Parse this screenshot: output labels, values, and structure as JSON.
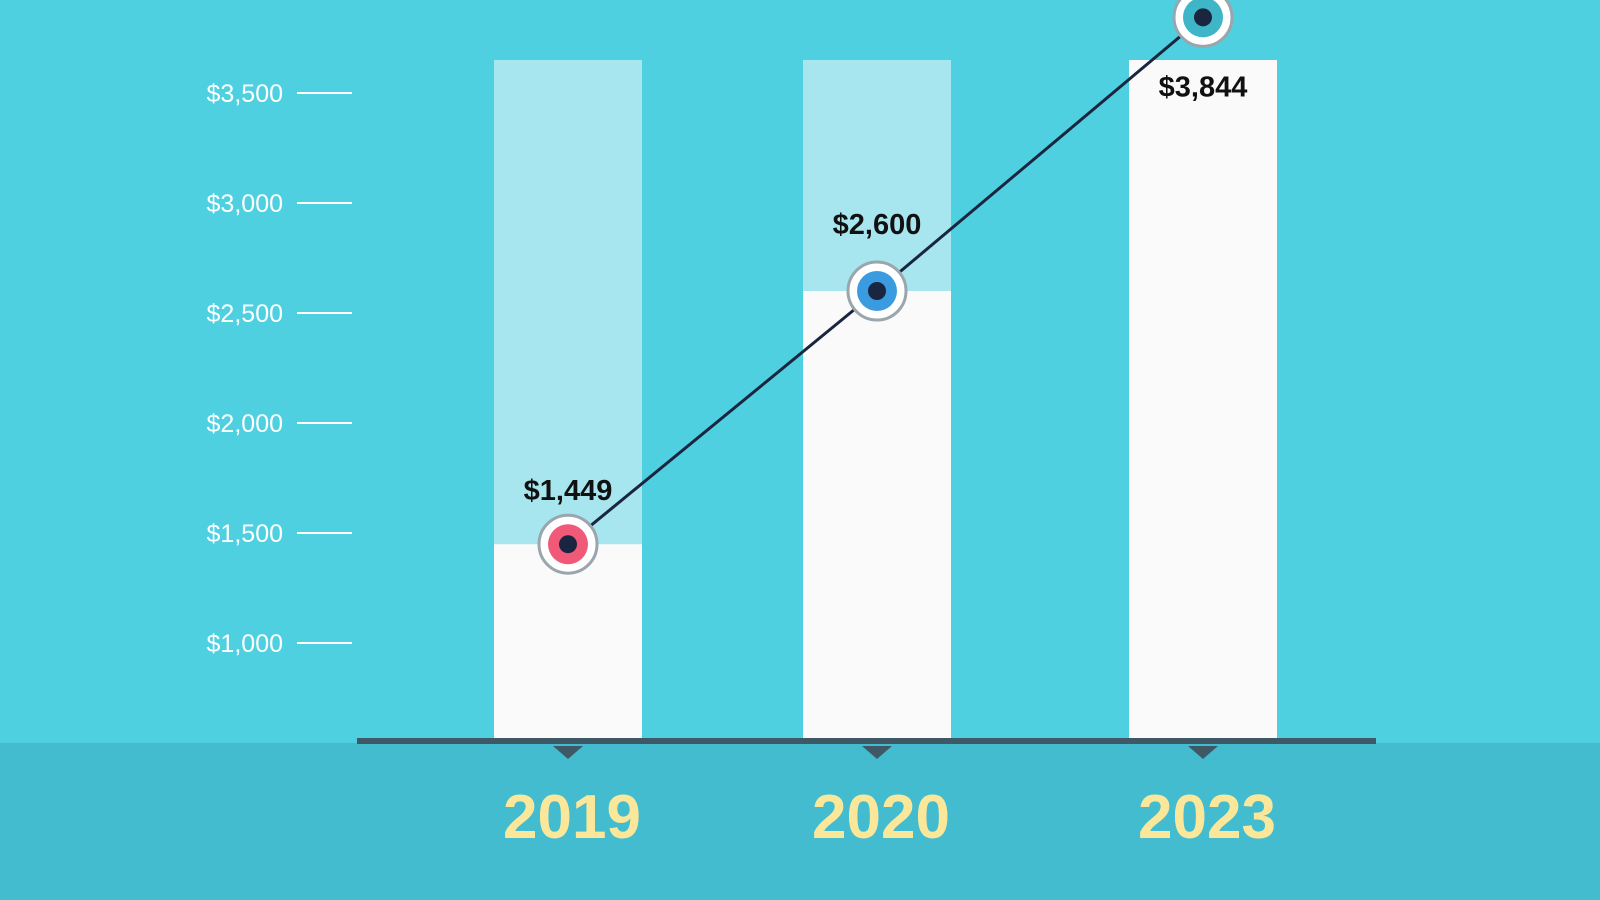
{
  "colors": {
    "background": "#4fd0e1",
    "footer_band": "#43bccf",
    "bar_full": "#fafafa",
    "bar_track": "#a7e5ef",
    "baseline": "#3f5866",
    "tick_text": "#ffffff",
    "value_text": "#111111",
    "year_text": "#fbe79a",
    "line": "#1a2540"
  },
  "chart_data": {
    "type": "bar",
    "title": "",
    "xlabel": "",
    "ylabel": "",
    "categories": [
      "2019",
      "2020",
      "2023"
    ],
    "values": [
      1449,
      2600,
      3844
    ],
    "value_labels": [
      "$1,449",
      "$2,600",
      "$3,844"
    ],
    "marker_colors": [
      "#f05a78",
      "#3a9be0",
      "#3fb5c8"
    ],
    "overlay": "line connecting markers at each bar value",
    "y_ticks": [
      {
        "value": 1000,
        "label": "$1,000"
      },
      {
        "value": 1500,
        "label": "$1,500"
      },
      {
        "value": 2000,
        "label": "$2,000"
      },
      {
        "value": 2500,
        "label": "$2,500"
      },
      {
        "value": 3000,
        "label": "$3,000"
      },
      {
        "value": 3500,
        "label": "$3,500"
      }
    ],
    "ylim": [
      550,
      3850
    ],
    "grid": false,
    "legend": "none"
  }
}
